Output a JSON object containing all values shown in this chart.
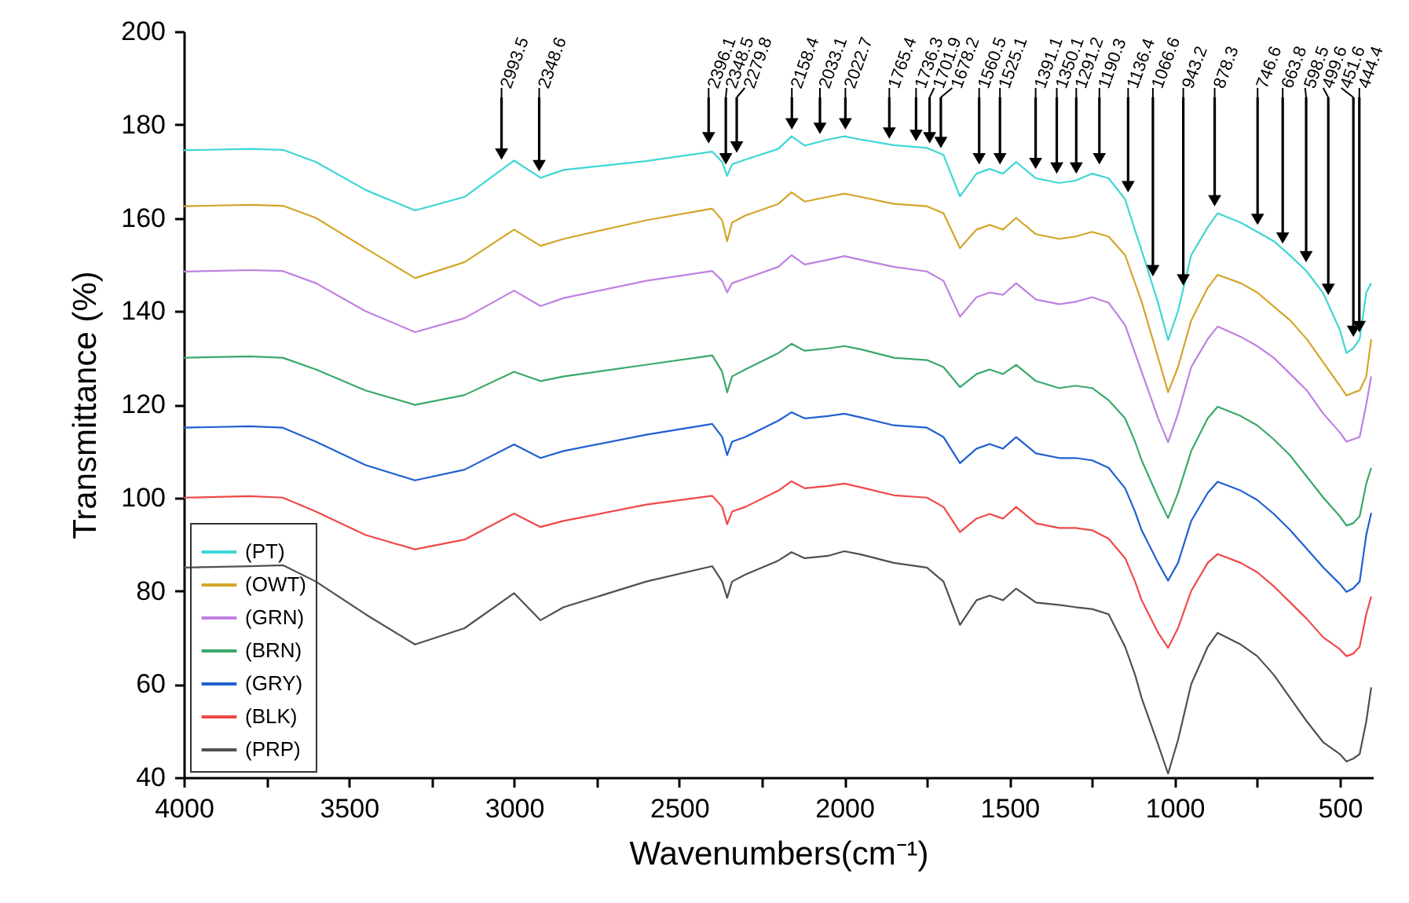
{
  "chart_data": {
    "type": "line",
    "xlabel": "Wavenumbers(cm⁻¹)",
    "ylabel": "Transmittance (%)",
    "xlim": [
      4000,
      400
    ],
    "ylim": [
      40,
      200
    ],
    "xticks": [
      4000,
      {
        "value": 3750,
        "label": null
      },
      3500,
      {
        "value": 3250,
        "label": null
      },
      3000,
      {
        "value": 2750,
        "label": null
      },
      2500,
      {
        "value": 2250,
        "label": null
      },
      2000,
      {
        "value": 1750,
        "label": null
      },
      1500,
      {
        "value": 1250,
        "label": null
      },
      1000,
      {
        "value": 750,
        "label": null
      },
      500
    ],
    "yticks": [
      40,
      60,
      80,
      100,
      120,
      140,
      160,
      180,
      200
    ],
    "legend": "bottom left",
    "grid": false,
    "x": [
      4000,
      3800,
      3700,
      3600,
      3450,
      3300,
      3150,
      3000,
      2920,
      2850,
      2600,
      2400,
      2370,
      2355,
      2340,
      2300,
      2200,
      2160,
      2120,
      2050,
      2000,
      1950,
      1850,
      1750,
      1700,
      1650,
      1600,
      1560,
      1520,
      1480,
      1420,
      1350,
      1300,
      1250,
      1200,
      1150,
      1120,
      1100,
      1050,
      1020,
      990,
      950,
      900,
      870,
      800,
      750,
      700,
      650,
      600,
      550,
      500,
      480,
      460,
      440,
      420,
      405
    ],
    "series": [
      {
        "name": "(PT)",
        "color": "#3fd6d6",
        "values": [
          174.5,
          174.8,
          174.6,
          172,
          166,
          161.6,
          164.5,
          172.3,
          168.6,
          170.3,
          172.2,
          174.2,
          172,
          169,
          171.5,
          172.5,
          174.8,
          177.5,
          175.5,
          176.8,
          177.5,
          176.8,
          175.6,
          175,
          173.5,
          164.6,
          169.5,
          170.5,
          169.5,
          172,
          168.5,
          167.5,
          168,
          169.5,
          168.5,
          164,
          157.3,
          153,
          141.7,
          133.8,
          140,
          152,
          158,
          161,
          159,
          157,
          155,
          151.9,
          148.5,
          143.8,
          136,
          131,
          132,
          134,
          144,
          146
        ]
      },
      {
        "name": "(OWT)",
        "color": "#d4a52a",
        "values": [
          162.5,
          162.8,
          162.6,
          160,
          153.5,
          147.1,
          150.5,
          157.5,
          154,
          155.5,
          159.5,
          162,
          159.5,
          155,
          159,
          160.5,
          163,
          165.5,
          163.5,
          164.5,
          165.2,
          164.5,
          163,
          162.5,
          161,
          153.5,
          157.5,
          158.5,
          157.5,
          160,
          156.5,
          155.5,
          156,
          157,
          156,
          152,
          146,
          142,
          130,
          122.6,
          128,
          138,
          145,
          147.8,
          146,
          144,
          141,
          138,
          134,
          129,
          124,
          121.9,
          122.5,
          123,
          126,
          134
        ]
      },
      {
        "name": "(GRN)",
        "color": "#c080e0",
        "values": [
          148.5,
          148.8,
          148.6,
          146,
          140,
          135.5,
          138.5,
          144.4,
          141.1,
          142.8,
          146.5,
          148.6,
          146.5,
          144,
          146,
          147,
          149.5,
          152,
          150,
          151,
          151.8,
          151,
          149.5,
          148.5,
          146.5,
          138.8,
          143,
          144,
          143.5,
          146,
          142.5,
          141.5,
          142,
          143,
          141.8,
          137,
          131,
          127,
          117,
          111.9,
          118,
          128,
          134,
          136.7,
          134.5,
          132.5,
          130,
          126.5,
          123,
          118,
          114,
          112,
          112.5,
          113,
          120,
          126
        ]
      },
      {
        "name": "(BRN)",
        "color": "#3aa86a",
        "values": [
          130,
          130.3,
          130,
          127.5,
          123,
          119.9,
          122,
          127,
          125,
          126,
          128.5,
          130.5,
          127,
          122.6,
          126,
          127.5,
          131,
          133,
          131.5,
          132,
          132.5,
          131.8,
          130,
          129.5,
          128,
          123.7,
          126.5,
          127.5,
          126.5,
          128.5,
          125,
          123.5,
          124,
          123.5,
          120.9,
          117,
          112,
          108,
          100,
          95.6,
          101,
          110,
          117,
          119.5,
          117.5,
          115.5,
          112.5,
          109,
          104.5,
          100,
          96,
          94,
          94.5,
          96,
          103,
          106.4
        ]
      },
      {
        "name": "(GRY)",
        "color": "#2060d0",
        "values": [
          115,
          115.3,
          115,
          112,
          107,
          103.7,
          106,
          111.4,
          108.5,
          110,
          113.5,
          115.8,
          113,
          109.1,
          112,
          113,
          116.5,
          118.3,
          117,
          117.5,
          118,
          117.2,
          115.5,
          115,
          113,
          107.4,
          110.5,
          111.5,
          110.5,
          113,
          109.5,
          108.5,
          108.5,
          108,
          106.4,
          102,
          97,
          93,
          86,
          82.2,
          86,
          95,
          101,
          103.4,
          101.5,
          99.5,
          96.5,
          93,
          89,
          85,
          81.5,
          79.8,
          80.5,
          82,
          92,
          96.7
        ]
      },
      {
        "name": "(BLK)",
        "color": "#f04848",
        "values": [
          100,
          100.3,
          100,
          97,
          92,
          88.9,
          91,
          96.6,
          93.7,
          95,
          98.5,
          100.4,
          98,
          94.3,
          97,
          98,
          101.5,
          103.5,
          102,
          102.5,
          103,
          102.2,
          100.5,
          100,
          98,
          92.6,
          95.5,
          96.5,
          95.5,
          98,
          94.5,
          93.5,
          93.5,
          93,
          91.2,
          87,
          82,
          78,
          71,
          67.8,
          72,
          80,
          86,
          87.9,
          86,
          84,
          81,
          77.5,
          74,
          70,
          67.5,
          66,
          66.5,
          68,
          75,
          78.8
        ]
      },
      {
        "name": "(PRP)",
        "color": "#505050",
        "values": [
          85,
          85.3,
          85.5,
          82,
          75,
          68.5,
          72,
          79.5,
          73.7,
          76.5,
          82,
          85.3,
          82,
          78.5,
          82,
          83.5,
          86.5,
          88.3,
          87,
          87.5,
          88.5,
          87.8,
          86,
          85,
          82,
          72.7,
          78,
          79,
          78,
          80.5,
          77.5,
          77,
          76.5,
          76.1,
          75,
          68,
          62,
          57,
          47,
          40.8,
          48,
          60,
          68,
          71,
          68.5,
          66,
          62,
          57,
          52,
          47.5,
          45,
          43.4,
          44,
          45,
          52,
          59.3
        ]
      }
    ],
    "annotations": [
      {
        "text": "2993.5",
        "x": 3038,
        "y": 172
      },
      {
        "text": "2348.6",
        "x": 2924,
        "y": 169.5
      },
      {
        "text": "2396.1",
        "x": 2411,
        "y": 175.5
      },
      {
        "text": "2348.5",
        "x": 2359,
        "y": 171
      },
      {
        "text": "2279.8",
        "x": 2326,
        "y": 173.5
      },
      {
        "text": "2158.4",
        "x": 2159,
        "y": 178.5
      },
      {
        "text": "2033.1",
        "x": 2074,
        "y": 177.5
      },
      {
        "text": "2022.7",
        "x": 1997,
        "y": 178.5
      },
      {
        "text": "1765.4",
        "x": 1864,
        "y": 176.5
      },
      {
        "text": "1736.3",
        "x": 1783,
        "y": 176
      },
      {
        "text": "1701.9",
        "x": 1742,
        "y": 175.5
      },
      {
        "text": "1678.2",
        "x": 1708,
        "y": 174.5
      },
      {
        "text": "1560.5",
        "x": 1592,
        "y": 171
      },
      {
        "text": "1525.1",
        "x": 1529,
        "y": 171
      },
      {
        "text": "1391.1",
        "x": 1421,
        "y": 170
      },
      {
        "text": "1350.1",
        "x": 1357,
        "y": 169
      },
      {
        "text": "1291.2",
        "x": 1298,
        "y": 169
      },
      {
        "text": "1190.3",
        "x": 1228,
        "y": 171
      },
      {
        "text": "1136.4",
        "x": 1141,
        "y": 165
      },
      {
        "text": "1066.6",
        "x": 1066,
        "y": 147
      },
      {
        "text": "943.2",
        "x": 974,
        "y": 145
      },
      {
        "text": "878.3",
        "x": 879,
        "y": 162
      },
      {
        "text": "746.6",
        "x": 749,
        "y": 158
      },
      {
        "text": "663.8",
        "x": 673,
        "y": 154
      },
      {
        "text": "598.5",
        "x": 602,
        "y": 150
      },
      {
        "text": "499.6",
        "x": 535,
        "y": 143
      },
      {
        "text": "451.6",
        "x": 459,
        "y": 134
      },
      {
        "text": "444.4",
        "x": 441,
        "y": 135
      }
    ]
  }
}
